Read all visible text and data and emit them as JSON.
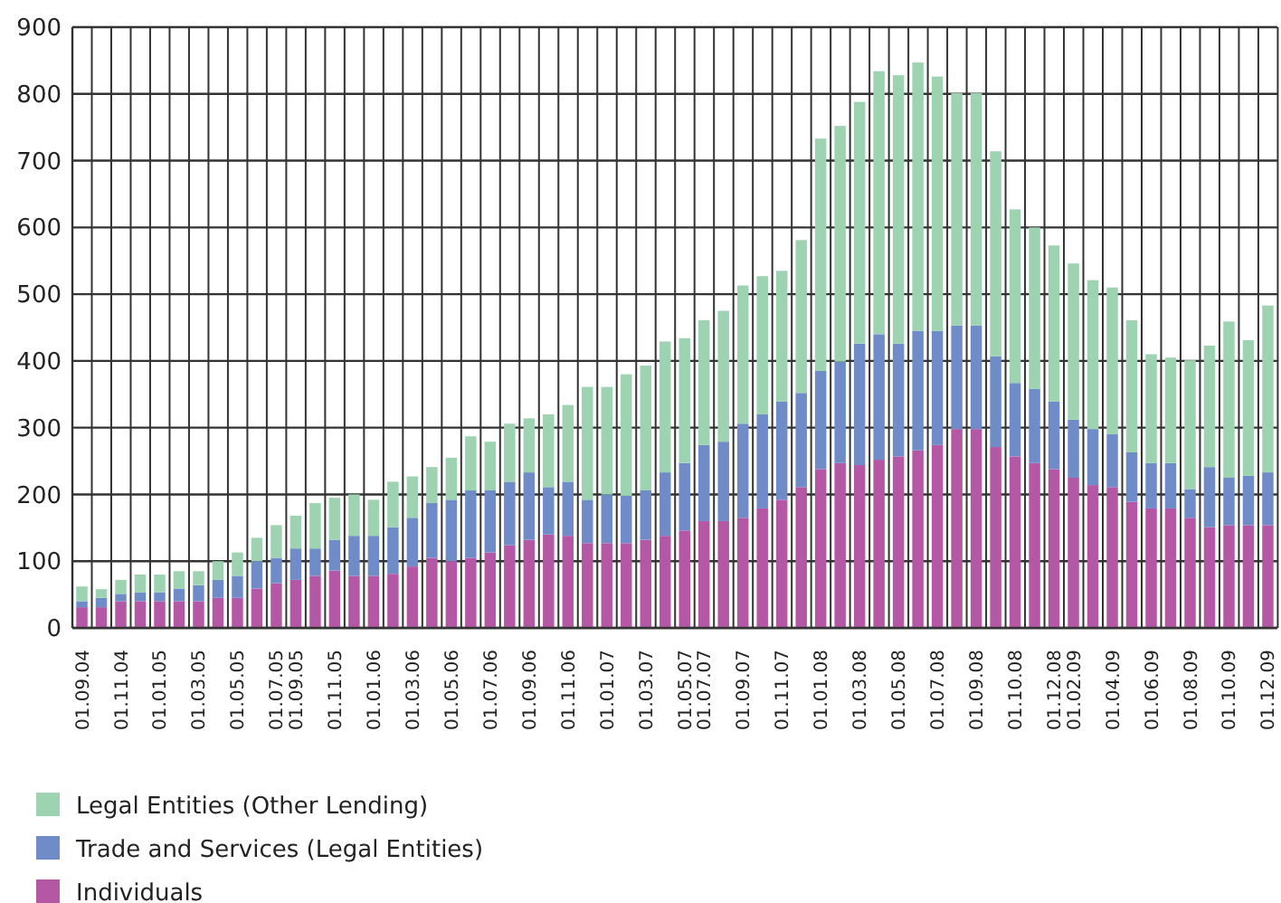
{
  "chart_data": {
    "type": "bar",
    "stacked": true,
    "grid": true,
    "legend": "bottom",
    "ylim": [
      0,
      900
    ],
    "yticks": [
      0,
      100,
      200,
      300,
      400,
      500,
      600,
      700,
      800,
      900
    ],
    "categories": [
      "01.09.04",
      null,
      "01.11.04",
      null,
      "01.01.05",
      null,
      "01.03.05",
      null,
      "01.05.05",
      null,
      "01.07.05",
      "01.09.05",
      null,
      "01.11.05",
      null,
      "01.01.06",
      null,
      "01.03.06",
      null,
      "01.05.06",
      null,
      "01.07.06",
      null,
      "01.09.06",
      null,
      "01.11.06",
      null,
      "01.01.07",
      null,
      "01.03.07",
      null,
      "01.05.07",
      "01.07.07",
      null,
      "01.09.07",
      null,
      "01.11.07",
      null,
      "01.01.08",
      null,
      "01.03.08",
      null,
      "01.05.08",
      null,
      "01.07.08",
      null,
      "01.09.08",
      null,
      "01.10.08",
      null,
      "01.12.08",
      "01.02.09",
      null,
      "01.04.09",
      null,
      "01.06.09",
      null,
      "01.08.09",
      null,
      "01.10.09",
      null,
      "01.12.09"
    ],
    "series": [
      {
        "name": "Individuals",
        "color": "#b457a5",
        "values": [
          31,
          31,
          40,
          40,
          40,
          40,
          40,
          45,
          45,
          59,
          67,
          72,
          78,
          86,
          78,
          78,
          81,
          92,
          105,
          100,
          105,
          113,
          124,
          132,
          140,
          138,
          127,
          127,
          127,
          132,
          138,
          146,
          160,
          160,
          165,
          179,
          192,
          211,
          238,
          247,
          244,
          252,
          257,
          266,
          274,
          298,
          298,
          271,
          257,
          247,
          238,
          225,
          214,
          211,
          189,
          179,
          179,
          165,
          151,
          154,
          154,
          154
        ]
      },
      {
        "name": "Trade and Services (Legal Entities)",
        "color": "#6f8cc9",
        "values": [
          9,
          14,
          11,
          13,
          13,
          19,
          24,
          27,
          33,
          41,
          38,
          47,
          41,
          46,
          60,
          60,
          70,
          73,
          82,
          92,
          101,
          93,
          95,
          101,
          71,
          81,
          65,
          73,
          71,
          74,
          95,
          101,
          114,
          119,
          141,
          141,
          147,
          141,
          147,
          152,
          182,
          188,
          169,
          179,
          171,
          155,
          155,
          136,
          110,
          111,
          101,
          87,
          84,
          79,
          74,
          68,
          68,
          43,
          90,
          71,
          74,
          79
        ]
      },
      {
        "name": "Legal Entities (Other Lending)",
        "color": "#9dd3b0",
        "values": [
          22,
          13,
          21,
          27,
          27,
          26,
          21,
          28,
          35,
          35,
          49,
          49,
          68,
          63,
          62,
          54,
          68,
          62,
          54,
          63,
          81,
          73,
          87,
          81,
          109,
          115,
          169,
          161,
          182,
          187,
          196,
          187,
          187,
          196,
          207,
          207,
          196,
          229,
          348,
          353,
          362,
          394,
          402,
          402,
          381,
          348,
          348,
          307,
          260,
          242,
          234,
          234,
          223,
          220,
          198,
          163,
          158,
          193,
          182,
          234,
          203,
          250
        ]
      }
    ]
  }
}
